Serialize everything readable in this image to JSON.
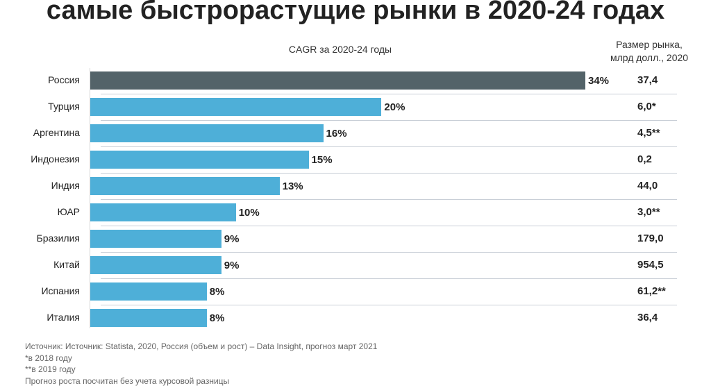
{
  "chart_data": {
    "type": "bar",
    "orientation": "horizontal",
    "title": "самые быстрорастущие рынки в 2020-24 годах",
    "subtitle": "CAGR за 2020-24 годы",
    "size_header": [
      "Размер рынка,",
      "млрд долл., 2020"
    ],
    "categories": [
      "Россия",
      "Турция",
      "Аргентина",
      "Индонезия",
      "Индия",
      "ЮАР",
      "Бразилия",
      "Китай",
      "Испания",
      "Италия"
    ],
    "values": [
      34,
      20,
      16,
      15,
      13,
      10,
      9,
      9,
      8,
      8
    ],
    "value_labels": [
      "34%",
      "20%",
      "16%",
      "15%",
      "13%",
      "10%",
      "9%",
      "9%",
      "8%",
      "8%"
    ],
    "market_size": [
      "37,4",
      "6,0*",
      "4,5**",
      "0,2",
      "44,0",
      "3,0**",
      "179,0",
      "954,5",
      "61,2**",
      "36,4"
    ],
    "highlight_color": "#536369",
    "bar_color": "#4eafd8",
    "xlim": [
      0,
      34
    ]
  },
  "notes": [
    "Источник: Источник: Statista, 2020, Россия (объем и рост) – Data Insight, прогноз март 2021",
    "*в 2018 году",
    "**в 2019 году",
    "Прогноз роста посчитан без учета курсовой разницы"
  ]
}
